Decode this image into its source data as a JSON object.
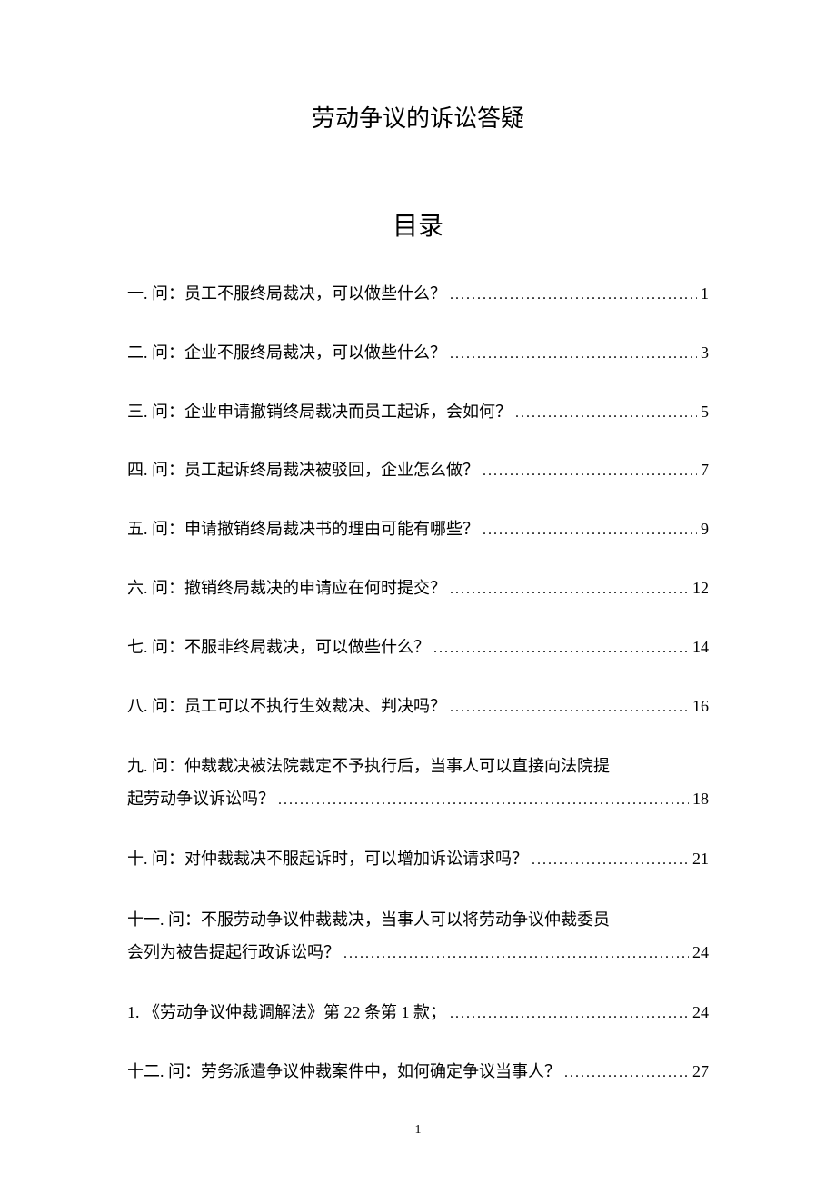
{
  "document": {
    "title": "劳动争议的诉讼答疑",
    "toc_heading": "目录",
    "page_number": "1",
    "entries": [
      {
        "label": "一. 问：员工不服终局裁决，可以做些什么？",
        "page": "1",
        "multiline": false
      },
      {
        "label": "二. 问：企业不服终局裁决，可以做些什么？",
        "page": "3",
        "multiline": false
      },
      {
        "label": "三. 问：企业申请撤销终局裁决而员工起诉，会如何？",
        "page": "5",
        "multiline": false
      },
      {
        "label": "四. 问：员工起诉终局裁决被驳回，企业怎么做？",
        "page": "7",
        "multiline": false
      },
      {
        "label": "五. 问：申请撤销终局裁决书的理由可能有哪些？",
        "page": "9",
        "multiline": false
      },
      {
        "label": "六. 问：撤销终局裁决的申请应在何时提交？",
        "page": "12",
        "multiline": false
      },
      {
        "label": "七. 问：不服非终局裁决，可以做些什么？",
        "page": "14",
        "multiline": false
      },
      {
        "label": "八. 问：员工可以不执行生效裁决、判决吗？",
        "page": "16",
        "multiline": false
      },
      {
        "label_line1": "九. 问：仲裁裁决被法院裁定不予执行后，当事人可以直接向法院提",
        "label_line2": "起劳动争议诉讼吗？",
        "page": "18",
        "multiline": true
      },
      {
        "label": "十. 问：对仲裁裁决不服起诉时，可以增加诉讼请求吗？",
        "page": "21",
        "multiline": false
      },
      {
        "label_line1": "十一. 问：不服劳动争议仲裁裁决，当事人可以将劳动争议仲裁委员",
        "label_line2": "会列为被告提起行政诉讼吗？",
        "page": "24",
        "multiline": true
      },
      {
        "label": "1. 《劳动争议仲裁调解法》第 22 条第 1 款；",
        "page": "24",
        "multiline": false
      },
      {
        "label": "十二. 问：劳务派遣争议仲裁案件中，如何确定争议当事人？",
        "page": "27",
        "multiline": false
      }
    ]
  }
}
